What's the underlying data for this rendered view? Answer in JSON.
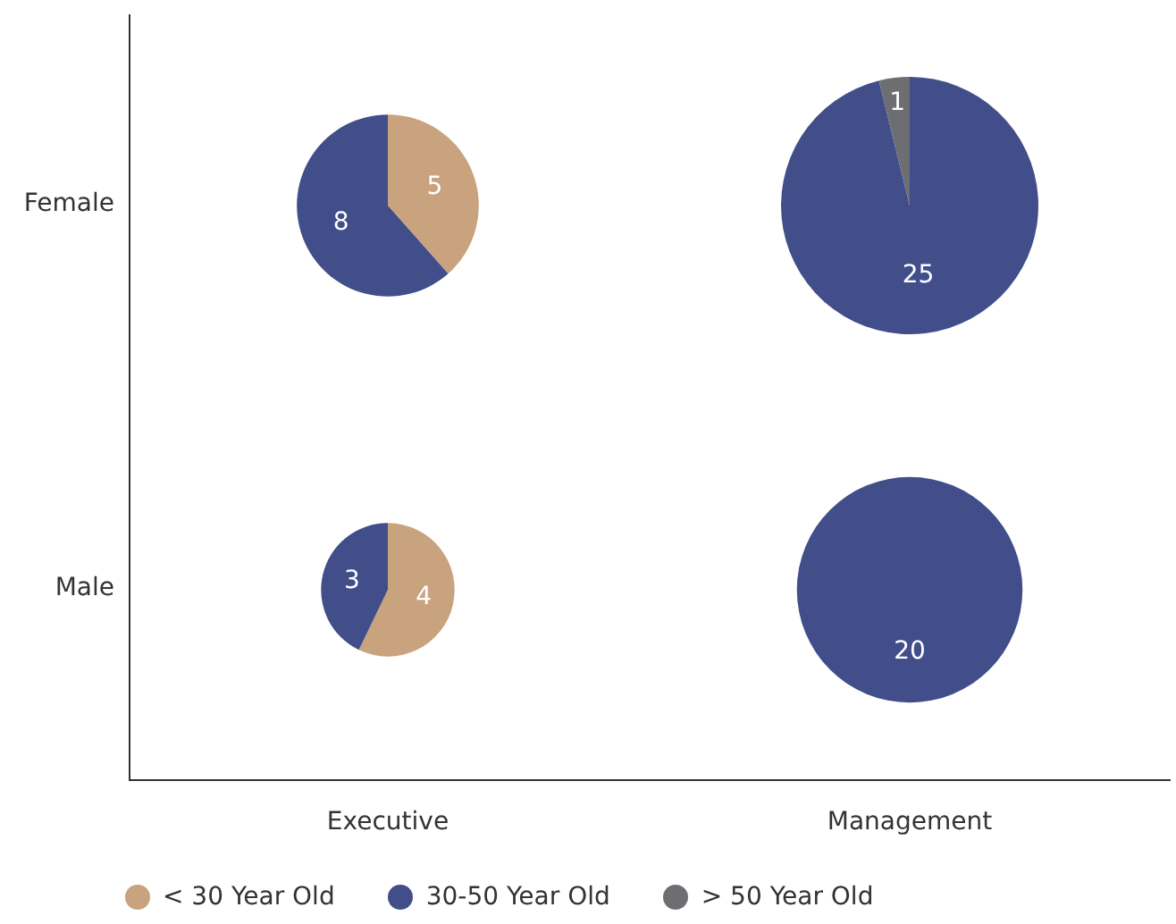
{
  "chart_data": [
    {
      "type": "pie",
      "ylabel": "Female",
      "legend": "bottom",
      "categories": [
        "< 30 Year Old",
        "30-50 Year Old",
        "> 50 Year Old"
      ],
      "values": [
        5,
        8,
        0
      ],
      "value_labels": [
        "5",
        "8",
        null
      ],
      "colors": [
        "#c9a27e",
        "#414e8a",
        "#6d6e71"
      ]
    },
    {
      "type": "pie",
      "categories": [
        null,
        null,
        null
      ],
      "values": [
        0,
        25,
        1
      ],
      "value_labels": [
        null,
        "25",
        "1"
      ],
      "colors": [
        "#c9a27e",
        "#414e8a",
        "#6d6e71"
      ]
    },
    {
      "type": "pie",
      "ylabel": "Male",
      "xlabel": "Executive",
      "categories": [
        null,
        null,
        null
      ],
      "values": [
        4,
        3,
        0
      ],
      "value_labels": [
        "4",
        "3",
        null
      ],
      "colors": [
        "#c9a27e",
        "#414e8a",
        "#6d6e71"
      ]
    },
    {
      "type": "pie",
      "xlabel": "Management",
      "categories": [
        null,
        null,
        null
      ],
      "values": [
        0,
        20,
        0
      ],
      "value_labels": [
        null,
        "20",
        null
      ],
      "colors": [
        "#c9a27e",
        "#414e8a",
        "#6d6e71"
      ]
    }
  ]
}
